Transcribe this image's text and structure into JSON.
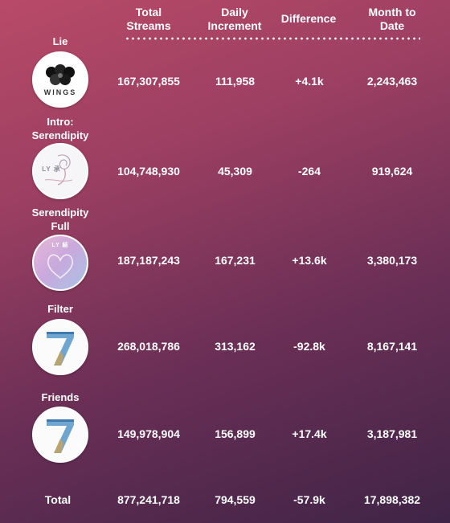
{
  "header": {
    "total_streams": [
      "Total",
      "Streams"
    ],
    "daily_increment": [
      "Daily",
      "Increment"
    ],
    "difference": "Difference",
    "month_to_date": [
      "Month to",
      "Date"
    ]
  },
  "songs": [
    {
      "title": [
        "Lie"
      ],
      "cover": {
        "icon": "wings-album-icon",
        "label": "WINGS"
      },
      "total_streams": "167,307,855",
      "daily_increment": "111,958",
      "difference": "+4.1k",
      "month_to_date": "2,243,463"
    },
    {
      "title": [
        "Intro:",
        "Serendipity"
      ],
      "cover": {
        "icon": "love-yourself-her-album-icon",
        "label": "LY 承"
      },
      "total_streams": "104,748,930",
      "daily_increment": "45,309",
      "difference": "-264",
      "month_to_date": "919,624"
    },
    {
      "title": [
        "Serendipity",
        "Full"
      ],
      "cover": {
        "icon": "love-yourself-answer-album-icon",
        "label": "LY 結"
      },
      "total_streams": "187,187,243",
      "daily_increment": "167,231",
      "difference": "+13.6k",
      "month_to_date": "3,380,173"
    },
    {
      "title": [
        "Filter"
      ],
      "cover": {
        "icon": "map-of-the-soul-7-album-icon",
        "label": "7"
      },
      "total_streams": "268,018,786",
      "daily_increment": "313,162",
      "difference": "-92.8k",
      "month_to_date": "8,167,141"
    },
    {
      "title": [
        "Friends"
      ],
      "cover": {
        "icon": "map-of-the-soul-7-album-icon",
        "label": "7"
      },
      "total_streams": "149,978,904",
      "daily_increment": "156,899",
      "difference": "+17.4k",
      "month_to_date": "3,187,981"
    }
  ],
  "total": {
    "label": "Total",
    "total_streams": "877,241,718",
    "daily_increment": "794,559",
    "difference": "-57.9k",
    "month_to_date": "17,898,382"
  },
  "colors": {
    "background_top": "#b84a68",
    "background_bottom": "#3f2447",
    "text": "#ffffff"
  }
}
